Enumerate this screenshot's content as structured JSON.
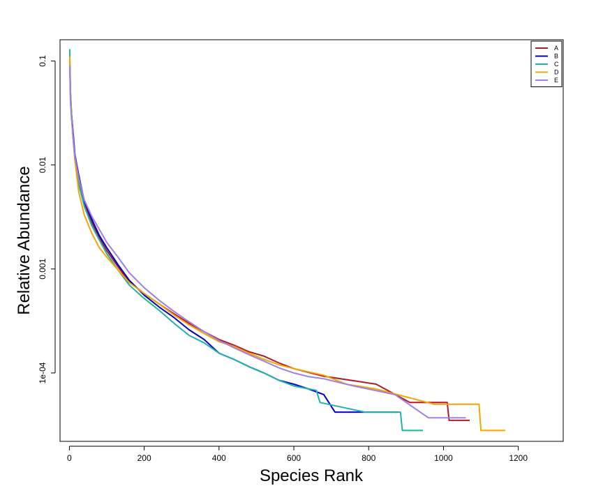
{
  "chart_data": {
    "type": "line",
    "title": "",
    "xlabel": "Species Rank",
    "ylabel": "Relative Abundance",
    "x_scale": "linear",
    "y_scale": "log",
    "xlim": [
      -25,
      1320
    ],
    "ylim": [
      2.2e-05,
      0.16
    ],
    "x_ticks": [
      0,
      200,
      400,
      600,
      800,
      1000,
      1200
    ],
    "x_tick_labels": [
      "0",
      "200",
      "400",
      "600",
      "800",
      "1000",
      "1200"
    ],
    "y_ticks": [
      0.1,
      0.01,
      0.001,
      0.0001
    ],
    "y_tick_labels": [
      "0.1",
      "0.01",
      "0.001",
      "1e-04"
    ],
    "grid": false,
    "legend_position": "top-right",
    "series": [
      {
        "name": "A",
        "color": "#b2182b",
        "points": [
          [
            1,
            0.105
          ],
          [
            3,
            0.05
          ],
          [
            6,
            0.03
          ],
          [
            10,
            0.02
          ],
          [
            15,
            0.012
          ],
          [
            25,
            0.007
          ],
          [
            40,
            0.0042
          ],
          [
            60,
            0.0028
          ],
          [
            80,
            0.002
          ],
          [
            100,
            0.0015
          ],
          [
            130,
            0.00105
          ],
          [
            160,
            0.00075
          ],
          [
            200,
            0.00058
          ],
          [
            240,
            0.00046
          ],
          [
            280,
            0.00037
          ],
          [
            320,
            0.0003
          ],
          [
            360,
            0.00025
          ],
          [
            400,
            0.00021
          ],
          [
            440,
            0.000185
          ],
          [
            480,
            0.00016
          ],
          [
            520,
            0.000145
          ],
          [
            560,
            0.000125
          ],
          [
            600,
            0.00011
          ],
          [
            680,
            9.3e-05
          ],
          [
            820,
            7.8e-05
          ],
          [
            910,
            5.2e-05
          ],
          [
            1010,
            5.2e-05
          ],
          [
            1015,
            3.5e-05
          ],
          [
            1070,
            3.5e-05
          ]
        ]
      },
      {
        "name": "B",
        "color": "#0000cd",
        "points": [
          [
            1,
            0.1
          ],
          [
            3,
            0.045
          ],
          [
            6,
            0.03
          ],
          [
            10,
            0.02
          ],
          [
            15,
            0.0125
          ],
          [
            25,
            0.008
          ],
          [
            40,
            0.0045
          ],
          [
            60,
            0.003
          ],
          [
            80,
            0.0021
          ],
          [
            100,
            0.0016
          ],
          [
            130,
            0.0011
          ],
          [
            160,
            0.00078
          ],
          [
            200,
            0.00056
          ],
          [
            240,
            0.00043
          ],
          [
            280,
            0.00034
          ],
          [
            320,
            0.00026
          ],
          [
            360,
            0.00021
          ],
          [
            400,
            0.000155
          ],
          [
            440,
            0.000135
          ],
          [
            480,
            0.000115
          ],
          [
            520,
            0.0001
          ],
          [
            560,
            8.5e-05
          ],
          [
            600,
            7.8e-05
          ],
          [
            640,
            7e-05
          ],
          [
            680,
            6.2e-05
          ],
          [
            710,
            4.2e-05
          ],
          [
            880,
            4.2e-05
          ]
        ]
      },
      {
        "name": "C",
        "color": "#1fb3a8",
        "points": [
          [
            1,
            0.13
          ],
          [
            3,
            0.05
          ],
          [
            6,
            0.03
          ],
          [
            10,
            0.018
          ],
          [
            15,
            0.011
          ],
          [
            25,
            0.0065
          ],
          [
            40,
            0.004
          ],
          [
            60,
            0.0026
          ],
          [
            80,
            0.0019
          ],
          [
            100,
            0.0014
          ],
          [
            130,
            0.00098
          ],
          [
            160,
            0.0007
          ],
          [
            200,
            0.00052
          ],
          [
            240,
            0.0004
          ],
          [
            280,
            0.0003
          ],
          [
            320,
            0.00023
          ],
          [
            360,
            0.000195
          ],
          [
            400,
            0.000155
          ],
          [
            440,
            0.000135
          ],
          [
            480,
            0.000115
          ],
          [
            520,
            0.0001
          ],
          [
            560,
            8.5e-05
          ],
          [
            600,
            7.5e-05
          ],
          [
            660,
            6.8e-05
          ],
          [
            670,
            5.2e-05
          ],
          [
            790,
            4.2e-05
          ],
          [
            885,
            4.2e-05
          ],
          [
            890,
            2.8e-05
          ],
          [
            945,
            2.8e-05
          ]
        ]
      },
      {
        "name": "D",
        "color": "#f5a500",
        "points": [
          [
            1,
            0.11
          ],
          [
            3,
            0.045
          ],
          [
            6,
            0.028
          ],
          [
            10,
            0.018
          ],
          [
            15,
            0.011
          ],
          [
            25,
            0.0055
          ],
          [
            40,
            0.0033
          ],
          [
            60,
            0.0022
          ],
          [
            80,
            0.0016
          ],
          [
            100,
            0.0013
          ],
          [
            130,
            0.00098
          ],
          [
            160,
            0.00074
          ],
          [
            200,
            0.00058
          ],
          [
            240,
            0.00046
          ],
          [
            280,
            0.00036
          ],
          [
            320,
            0.00029
          ],
          [
            360,
            0.00024
          ],
          [
            400,
            0.0002
          ],
          [
            440,
            0.00018
          ],
          [
            480,
            0.000155
          ],
          [
            520,
            0.000135
          ],
          [
            560,
            0.00012
          ],
          [
            600,
            0.00011
          ],
          [
            680,
            9.5e-05
          ],
          [
            740,
            7.8e-05
          ],
          [
            820,
            7e-05
          ],
          [
            975,
            5e-05
          ],
          [
            1095,
            5e-05
          ],
          [
            1100,
            2.8e-05
          ],
          [
            1165,
            2.8e-05
          ]
        ]
      },
      {
        "name": "E",
        "color": "#9f7fe0",
        "points": [
          [
            1,
            0.09
          ],
          [
            3,
            0.04
          ],
          [
            6,
            0.028
          ],
          [
            10,
            0.018
          ],
          [
            15,
            0.012
          ],
          [
            25,
            0.0075
          ],
          [
            40,
            0.0046
          ],
          [
            60,
            0.0032
          ],
          [
            80,
            0.0024
          ],
          [
            100,
            0.0018
          ],
          [
            130,
            0.0013
          ],
          [
            160,
            0.00092
          ],
          [
            200,
            0.00066
          ],
          [
            240,
            0.0005
          ],
          [
            280,
            0.00039
          ],
          [
            320,
            0.00031
          ],
          [
            360,
            0.00025
          ],
          [
            400,
            0.000205
          ],
          [
            440,
            0.000175
          ],
          [
            480,
            0.00015
          ],
          [
            520,
            0.00013
          ],
          [
            560,
            0.000112
          ],
          [
            600,
            0.0001
          ],
          [
            640,
            9.2e-05
          ],
          [
            680,
            8.8e-05
          ],
          [
            760,
            7.5e-05
          ],
          [
            870,
            6.2e-05
          ],
          [
            960,
            3.7e-05
          ],
          [
            1060,
            3.7e-05
          ]
        ]
      }
    ]
  }
}
